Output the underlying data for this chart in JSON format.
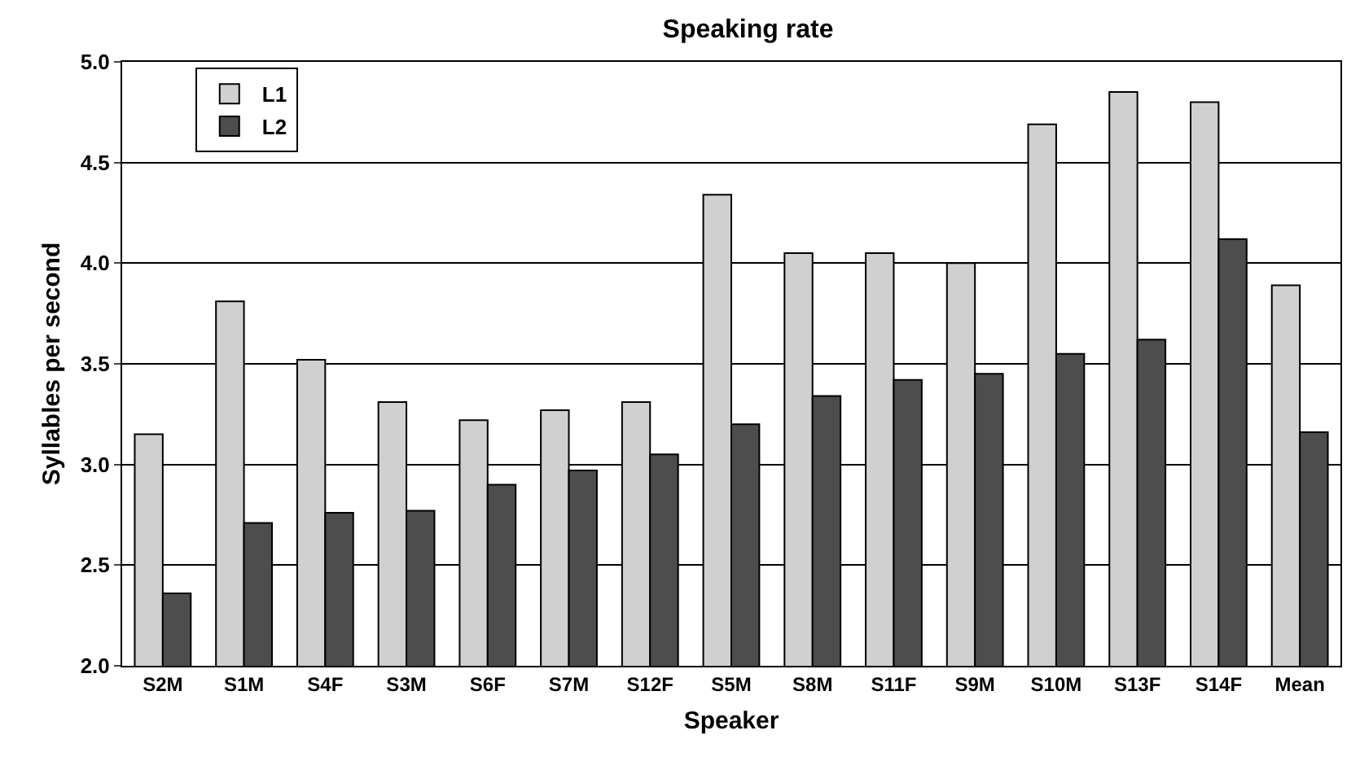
{
  "chart_data": {
    "type": "bar",
    "title": "Speaking rate",
    "xlabel": "Speaker",
    "ylabel": "Syllables per second",
    "categories": [
      "S2M",
      "S1M",
      "S4F",
      "S3M",
      "S6F",
      "S7M",
      "S12F",
      "S5M",
      "S8M",
      "S11F",
      "S9M",
      "S10M",
      "S13F",
      "S14F",
      "Mean"
    ],
    "series": [
      {
        "name": "L1",
        "color": "#d0d0d0",
        "values": [
          3.15,
          3.81,
          3.52,
          3.31,
          3.22,
          3.27,
          3.31,
          4.34,
          4.05,
          4.05,
          4.0,
          4.69,
          4.85,
          4.8,
          3.89
        ]
      },
      {
        "name": "L2",
        "color": "#4d4d4d",
        "values": [
          2.36,
          2.71,
          2.76,
          2.77,
          2.9,
          2.97,
          3.05,
          3.2,
          3.34,
          3.42,
          3.45,
          3.55,
          3.62,
          4.12,
          3.16
        ]
      }
    ],
    "ylim": [
      2.0,
      5.0
    ],
    "yticks": [
      {
        "value": 2.0,
        "label": "2.0"
      },
      {
        "value": 2.5,
        "label": "2.5"
      },
      {
        "value": 3.0,
        "label": "3.0"
      },
      {
        "value": 3.5,
        "label": "3.5"
      },
      {
        "value": 4.0,
        "label": "4.0"
      },
      {
        "value": 4.5,
        "label": "4.5"
      },
      {
        "value": 5.0,
        "label": "5.0"
      }
    ],
    "grid": "y",
    "legend": "top left"
  }
}
